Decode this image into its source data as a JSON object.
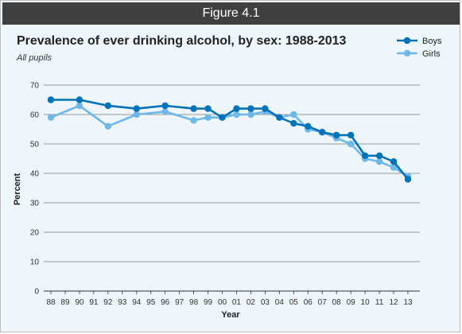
{
  "figure_label": "Figure 4.1",
  "chart_data": {
    "type": "line",
    "title": "Prevalence of ever drinking alcohol, by sex: 1988-2013",
    "subtitle": "All pupils",
    "xlabel": "Year",
    "ylabel": "Percent",
    "ylim": [
      0,
      70
    ],
    "yticks": [
      0,
      10,
      20,
      30,
      40,
      50,
      60,
      70
    ],
    "grid": "horizontal",
    "legend": "top-right",
    "categories": [
      "88",
      "89",
      "90",
      "91",
      "92",
      "93",
      "94",
      "95",
      "96",
      "97",
      "98",
      "99",
      "00",
      "01",
      "02",
      "03",
      "04",
      "05",
      "06",
      "07",
      "08",
      "09",
      "10",
      "11",
      "12",
      "13"
    ],
    "series": [
      {
        "name": "Boys",
        "color": "#0072b8",
        "points": [
          {
            "x": "88",
            "y": 65
          },
          {
            "x": "90",
            "y": 65
          },
          {
            "x": "92",
            "y": 63
          },
          {
            "x": "94",
            "y": 62
          },
          {
            "x": "96",
            "y": 63
          },
          {
            "x": "98",
            "y": 62
          },
          {
            "x": "99",
            "y": 62
          },
          {
            "x": "00",
            "y": 59
          },
          {
            "x": "01",
            "y": 62
          },
          {
            "x": "02",
            "y": 62
          },
          {
            "x": "03",
            "y": 62
          },
          {
            "x": "04",
            "y": 59
          },
          {
            "x": "05",
            "y": 57
          },
          {
            "x": "06",
            "y": 56
          },
          {
            "x": "07",
            "y": 54
          },
          {
            "x": "08",
            "y": 53
          },
          {
            "x": "09",
            "y": 53
          },
          {
            "x": "10",
            "y": 46
          },
          {
            "x": "11",
            "y": 46
          },
          {
            "x": "12",
            "y": 44
          },
          {
            "x": "13",
            "y": 38
          }
        ]
      },
      {
        "name": "Girls",
        "color": "#6db8e6",
        "points": [
          {
            "x": "88",
            "y": 59
          },
          {
            "x": "90",
            "y": 63
          },
          {
            "x": "92",
            "y": 56
          },
          {
            "x": "94",
            "y": 60
          },
          {
            "x": "96",
            "y": 61
          },
          {
            "x": "98",
            "y": 58
          },
          {
            "x": "99",
            "y": 59
          },
          {
            "x": "00",
            "y": 59
          },
          {
            "x": "01",
            "y": 60
          },
          {
            "x": "02",
            "y": 60
          },
          {
            "x": "03",
            "y": 61
          },
          {
            "x": "04",
            "y": 59
          },
          {
            "x": "05",
            "y": 60
          },
          {
            "x": "06",
            "y": 55
          },
          {
            "x": "07",
            "y": 54
          },
          {
            "x": "08",
            "y": 52
          },
          {
            "x": "09",
            "y": 50
          },
          {
            "x": "10",
            "y": 45
          },
          {
            "x": "11",
            "y": 44
          },
          {
            "x": "12",
            "y": 42
          },
          {
            "x": "13",
            "y": 39
          }
        ]
      }
    ]
  }
}
